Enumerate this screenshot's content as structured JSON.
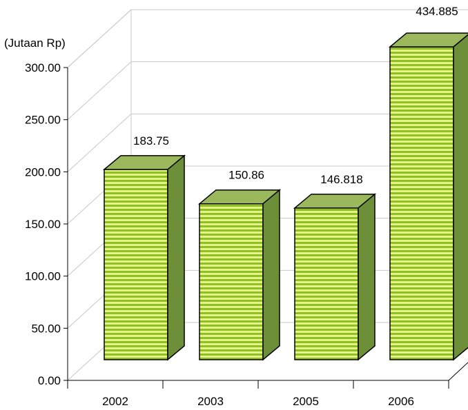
{
  "chart_data": {
    "type": "bar",
    "categories": [
      "2002",
      "2003",
      "2005",
      "2006"
    ],
    "values": [
      183.75,
      150.86,
      146.818,
      434.885
    ],
    "value_labels": [
      "183.75",
      "150.86",
      "146.818",
      "434.885"
    ],
    "ylabel": "(Jutaan Rp)",
    "ylim": [
      0,
      300
    ],
    "yticks": [
      "0.00",
      "50.00",
      "100.00",
      "150.00",
      "200.00",
      "250.00",
      "300.00"
    ],
    "grid": true,
    "style": "3d",
    "colors": {
      "face": "#cfe85a",
      "stripe": "#8fbf20",
      "top": "#9cb85c",
      "side": "#6e8f3a",
      "grid": "#c8c8c8"
    }
  }
}
